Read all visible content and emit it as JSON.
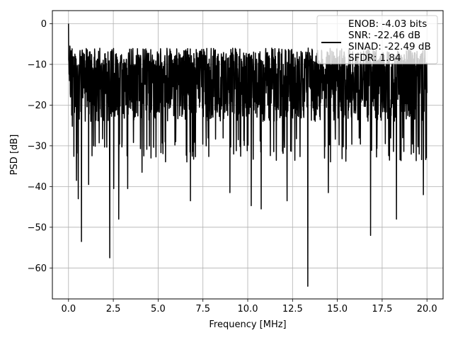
{
  "chart_data": {
    "type": "line",
    "title": "",
    "xlabel": "Frequency [MHz]",
    "ylabel": "PSD [dB]",
    "xlim": [
      -0.9,
      20.9
    ],
    "ylim": [
      -67.6,
      3.2
    ],
    "xticks": [
      0.0,
      2.5,
      5.0,
      7.5,
      10.0,
      12.5,
      15.0,
      17.5,
      20.0
    ],
    "xtick_labels": [
      "0.0",
      "2.5",
      "5.0",
      "7.5",
      "10.0",
      "12.5",
      "15.0",
      "17.5",
      "20.0"
    ],
    "yticks": [
      0,
      -10,
      -20,
      -30,
      -40,
      -50,
      -60
    ],
    "ytick_labels": [
      "0",
      "−10",
      "−20",
      "−30",
      "−40",
      "−50",
      "−60"
    ],
    "grid": true,
    "legend_position": "top-right",
    "series": [
      {
        "name": "ENOB: -4.03 bits\nSNR: -22.46 dB\nSINAD: -22.49 dB\nSFDR: 1.84",
        "legend_lines": [
          "ENOB: -4.03 bits",
          "SNR: -22.46 dB",
          "SINAD: -22.49 dB",
          "SFDR: 1.84"
        ],
        "color": "#000000",
        "x_range": [
          0.0,
          20.0
        ],
        "typical_floor_range": [
          -28,
          -12
        ],
        "peak_max_range": [
          -11,
          -6
        ],
        "notable_points": [
          {
            "x": 0.0,
            "y": 0.0
          },
          {
            "x": 0.08,
            "y": -5.5
          },
          {
            "x": 0.45,
            "y": -38.5
          },
          {
            "x": 0.55,
            "y": -43.0
          },
          {
            "x": 0.72,
            "y": -53.5
          },
          {
            "x": 1.12,
            "y": -39.5
          },
          {
            "x": 2.3,
            "y": -57.5
          },
          {
            "x": 2.52,
            "y": -40.5
          },
          {
            "x": 2.8,
            "y": -48.0
          },
          {
            "x": 3.3,
            "y": -40.5
          },
          {
            "x": 4.1,
            "y": -36.5
          },
          {
            "x": 6.8,
            "y": -43.5
          },
          {
            "x": 9.0,
            "y": -41.5
          },
          {
            "x": 10.2,
            "y": -44.7
          },
          {
            "x": 10.75,
            "y": -45.5
          },
          {
            "x": 12.2,
            "y": -43.5
          },
          {
            "x": 13.35,
            "y": -64.5
          },
          {
            "x": 14.5,
            "y": -41.5
          },
          {
            "x": 16.85,
            "y": -52.0
          },
          {
            "x": 18.3,
            "y": -48.0
          },
          {
            "x": 19.8,
            "y": -42.0
          }
        ]
      }
    ]
  }
}
